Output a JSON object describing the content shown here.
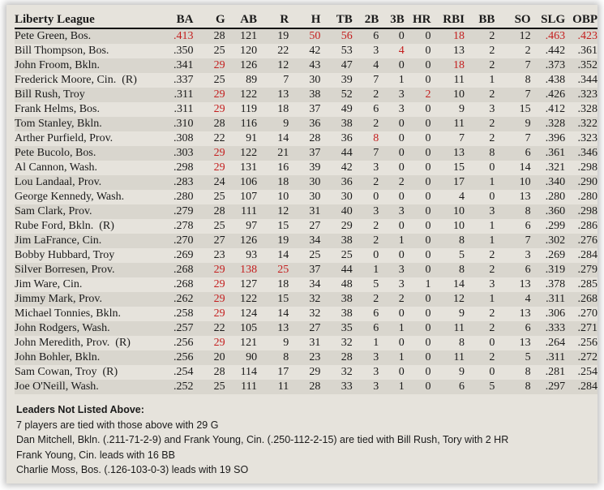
{
  "title": "Liberty League",
  "columns": [
    "BA",
    "G",
    "AB",
    "R",
    "H",
    "TB",
    "2B",
    "3B",
    "HR",
    "RBI",
    "BB",
    "SO",
    "SLG",
    "OBP"
  ],
  "leader_color": "#c41e1e",
  "rows": [
    {
      "name": "Pete Green, Bos.",
      "v": [
        ".413",
        "28",
        "121",
        "19",
        "50",
        "56",
        "6",
        "0",
        "0",
        "18",
        "2",
        "12",
        ".463",
        ".423"
      ],
      "leaders": [
        "BA",
        "H",
        "TB",
        "RBI",
        "SLG",
        "OBP"
      ]
    },
    {
      "name": "Bill Thompson, Bos.",
      "v": [
        ".350",
        "25",
        "120",
        "22",
        "42",
        "53",
        "3",
        "4",
        "0",
        "13",
        "2",
        "2",
        ".442",
        ".361"
      ],
      "leaders": [
        "3B"
      ]
    },
    {
      "name": "John Froom, Bkln.",
      "v": [
        ".341",
        "29",
        "126",
        "12",
        "43",
        "47",
        "4",
        "0",
        "0",
        "18",
        "2",
        "7",
        ".373",
        ".352"
      ],
      "leaders": [
        "G",
        "RBI"
      ]
    },
    {
      "name": "Frederick Moore, Cin.  (R)",
      "v": [
        ".337",
        "25",
        "89",
        "7",
        "30",
        "39",
        "7",
        "1",
        "0",
        "11",
        "1",
        "8",
        ".438",
        ".344"
      ],
      "leaders": []
    },
    {
      "name": "Bill Rush, Troy",
      "v": [
        ".311",
        "29",
        "122",
        "13",
        "38",
        "52",
        "2",
        "3",
        "2",
        "10",
        "2",
        "7",
        ".426",
        ".323"
      ],
      "leaders": [
        "G",
        "HR"
      ]
    },
    {
      "name": "Frank Helms, Bos.",
      "v": [
        ".311",
        "29",
        "119",
        "18",
        "37",
        "49",
        "6",
        "3",
        "0",
        "9",
        "3",
        "15",
        ".412",
        ".328"
      ],
      "leaders": [
        "G"
      ]
    },
    {
      "name": "Tom Stanley, Bkln.",
      "v": [
        ".310",
        "28",
        "116",
        "9",
        "36",
        "38",
        "2",
        "0",
        "0",
        "11",
        "2",
        "9",
        ".328",
        ".322"
      ],
      "leaders": []
    },
    {
      "name": "Arther Purfield, Prov.",
      "v": [
        ".308",
        "22",
        "91",
        "14",
        "28",
        "36",
        "8",
        "0",
        "0",
        "7",
        "2",
        "7",
        ".396",
        ".323"
      ],
      "leaders": [
        "2B"
      ]
    },
    {
      "name": "Pete Bucolo, Bos.",
      "v": [
        ".303",
        "29",
        "122",
        "21",
        "37",
        "44",
        "7",
        "0",
        "0",
        "13",
        "8",
        "6",
        ".361",
        ".346"
      ],
      "leaders": [
        "G"
      ]
    },
    {
      "name": "Al Cannon, Wash.",
      "v": [
        ".298",
        "29",
        "131",
        "16",
        "39",
        "42",
        "3",
        "0",
        "0",
        "15",
        "0",
        "14",
        ".321",
        ".298"
      ],
      "leaders": [
        "G"
      ]
    },
    {
      "name": "Lou Landaal, Prov.",
      "v": [
        ".283",
        "24",
        "106",
        "18",
        "30",
        "36",
        "2",
        "2",
        "0",
        "17",
        "1",
        "10",
        ".340",
        ".290"
      ],
      "leaders": []
    },
    {
      "name": "George Kennedy, Wash.",
      "v": [
        ".280",
        "25",
        "107",
        "10",
        "30",
        "30",
        "0",
        "0",
        "0",
        "4",
        "0",
        "13",
        ".280",
        ".280"
      ],
      "leaders": []
    },
    {
      "name": "Sam Clark, Prov.",
      "v": [
        ".279",
        "28",
        "111",
        "12",
        "31",
        "40",
        "3",
        "3",
        "0",
        "10",
        "3",
        "8",
        ".360",
        ".298"
      ],
      "leaders": []
    },
    {
      "name": "Rube Ford, Bkln.  (R)",
      "v": [
        ".278",
        "25",
        "97",
        "15",
        "27",
        "29",
        "2",
        "0",
        "0",
        "10",
        "1",
        "6",
        ".299",
        ".286"
      ],
      "leaders": []
    },
    {
      "name": "Jim LaFrance, Cin.",
      "v": [
        ".270",
        "27",
        "126",
        "19",
        "34",
        "38",
        "2",
        "1",
        "0",
        "8",
        "1",
        "7",
        ".302",
        ".276"
      ],
      "leaders": []
    },
    {
      "name": "Bobby Hubbard, Troy",
      "v": [
        ".269",
        "23",
        "93",
        "14",
        "25",
        "25",
        "0",
        "0",
        "0",
        "5",
        "2",
        "3",
        ".269",
        ".284"
      ],
      "leaders": []
    },
    {
      "name": "Silver Borresen, Prov.",
      "v": [
        ".268",
        "29",
        "138",
        "25",
        "37",
        "44",
        "1",
        "3",
        "0",
        "8",
        "2",
        "6",
        ".319",
        ".279"
      ],
      "leaders": [
        "G",
        "AB",
        "R"
      ]
    },
    {
      "name": "Jim Ware, Cin.",
      "v": [
        ".268",
        "29",
        "127",
        "18",
        "34",
        "48",
        "5",
        "3",
        "1",
        "14",
        "3",
        "13",
        ".378",
        ".285"
      ],
      "leaders": [
        "G"
      ]
    },
    {
      "name": "Jimmy Mark, Prov.",
      "v": [
        ".262",
        "29",
        "122",
        "15",
        "32",
        "38",
        "2",
        "2",
        "0",
        "12",
        "1",
        "4",
        ".311",
        ".268"
      ],
      "leaders": [
        "G"
      ]
    },
    {
      "name": "Michael Tonnies, Bkln.",
      "v": [
        ".258",
        "29",
        "124",
        "14",
        "32",
        "38",
        "6",
        "0",
        "0",
        "9",
        "2",
        "13",
        ".306",
        ".270"
      ],
      "leaders": [
        "G"
      ]
    },
    {
      "name": "John Rodgers, Wash.",
      "v": [
        ".257",
        "22",
        "105",
        "13",
        "27",
        "35",
        "6",
        "1",
        "0",
        "11",
        "2",
        "6",
        ".333",
        ".271"
      ],
      "leaders": []
    },
    {
      "name": "John Meredith, Prov.  (R)",
      "v": [
        ".256",
        "29",
        "121",
        "9",
        "31",
        "32",
        "1",
        "0",
        "0",
        "8",
        "0",
        "13",
        ".264",
        ".256"
      ],
      "leaders": [
        "G"
      ]
    },
    {
      "name": "John Bohler, Bkln.",
      "v": [
        ".256",
        "20",
        "90",
        "8",
        "23",
        "28",
        "3",
        "1",
        "0",
        "11",
        "2",
        "5",
        ".311",
        ".272"
      ],
      "leaders": []
    },
    {
      "name": "Sam Cowan, Troy  (R)",
      "v": [
        ".254",
        "28",
        "114",
        "17",
        "29",
        "32",
        "3",
        "0",
        "0",
        "9",
        "0",
        "8",
        ".281",
        ".254"
      ],
      "leaders": []
    },
    {
      "name": "Joe O'Neill, Wash.",
      "v": [
        ".252",
        "25",
        "111",
        "11",
        "28",
        "33",
        "3",
        "1",
        "0",
        "6",
        "5",
        "8",
        ".297",
        ".284"
      ],
      "leaders": []
    }
  ],
  "footer": {
    "heading": "Leaders Not Listed Above:",
    "lines": [
      "7 players are tied with those above with 29 G",
      "Dan Mitchell, Bkln. (.211-71-2-9) and Frank Young, Cin. (.250-112-2-15) are tied with Bill Rush, Tory with 2 HR",
      "Frank Young, Cin. leads with 16 BB",
      "Charlie Moss, Bos. (.126-103-0-3) leads with 19 SO"
    ]
  }
}
